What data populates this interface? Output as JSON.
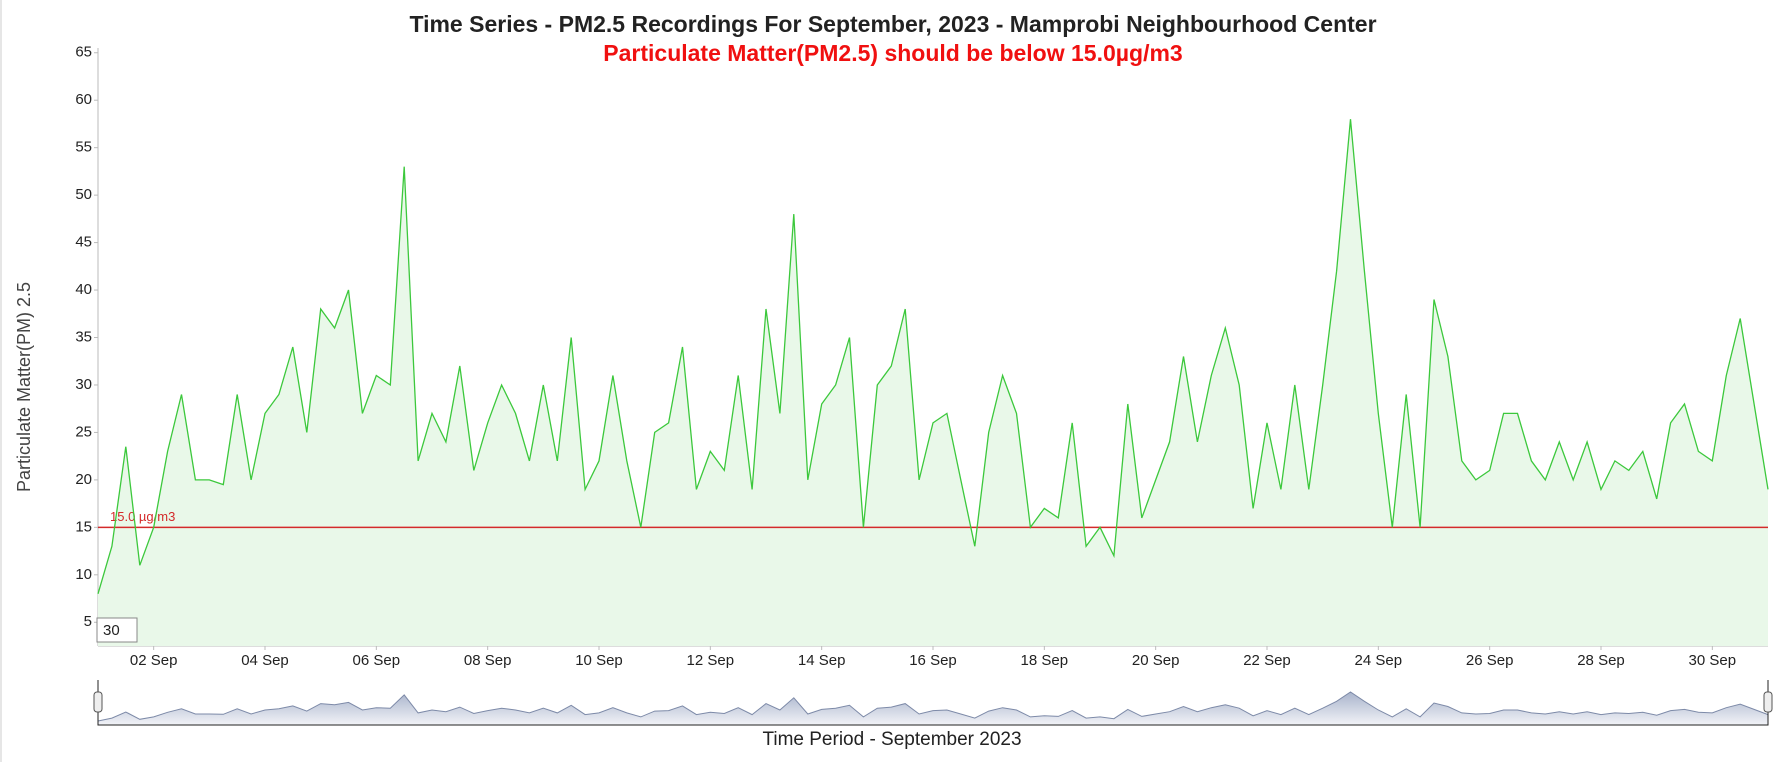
{
  "chart_data": {
    "type": "line",
    "title": "Time Series - PM2.5 Recordings For September, 2023 - Mamprobi Neighbourhood Center",
    "subtitle": "Particulate Matter(PM2.5) should be below 15.0µg/m3",
    "y_label": "Particulate Matter(PM) 2.5",
    "x_label": "Time Period - September 2023",
    "rolling_period": 30,
    "color": "#3cc83c",
    "fill_color": "#e9f8e9",
    "threshold": {
      "value": 15,
      "label": "15.0 µg/m3",
      "color": "#d42a2a"
    },
    "xlim": [
      1,
      31
    ],
    "ylim": [
      2.5,
      65.5
    ],
    "xticks": [
      {
        "value": 2,
        "label": "02 Sep"
      },
      {
        "value": 4,
        "label": "04 Sep"
      },
      {
        "value": 6,
        "label": "06 Sep"
      },
      {
        "value": 8,
        "label": "08 Sep"
      },
      {
        "value": 10,
        "label": "10 Sep"
      },
      {
        "value": 12,
        "label": "12 Sep"
      },
      {
        "value": 14,
        "label": "14 Sep"
      },
      {
        "value": 16,
        "label": "16 Sep"
      },
      {
        "value": 18,
        "label": "18 Sep"
      },
      {
        "value": 20,
        "label": "20 Sep"
      },
      {
        "value": 22,
        "label": "22 Sep"
      },
      {
        "value": 24,
        "label": "24 Sep"
      },
      {
        "value": 26,
        "label": "26 Sep"
      },
      {
        "value": 28,
        "label": "28 Sep"
      },
      {
        "value": 30,
        "label": "30 Sep"
      }
    ],
    "yticks": [
      5,
      10,
      15,
      20,
      25,
      30,
      35,
      40,
      45,
      50,
      55,
      60,
      65
    ],
    "x": [
      1,
      1.25,
      1.5,
      1.75,
      2,
      2.25,
      2.5,
      2.75,
      3,
      3.25,
      3.5,
      3.75,
      4,
      4.25,
      4.5,
      4.75,
      5,
      5.25,
      5.5,
      5.75,
      6,
      6.25,
      6.5,
      6.75,
      7,
      7.25,
      7.5,
      7.75,
      8,
      8.25,
      8.5,
      8.75,
      9,
      9.25,
      9.5,
      9.75,
      10,
      10.25,
      10.5,
      10.75,
      11,
      11.25,
      11.5,
      11.75,
      12,
      12.25,
      12.5,
      12.75,
      13,
      13.25,
      13.5,
      13.75,
      14,
      14.25,
      14.5,
      14.75,
      15,
      15.25,
      15.5,
      15.75,
      16,
      16.25,
      16.5,
      16.75,
      17,
      17.25,
      17.5,
      17.75,
      18,
      18.25,
      18.5,
      18.75,
      19,
      19.25,
      19.5,
      19.75,
      20,
      20.25,
      20.5,
      20.75,
      21,
      21.25,
      21.5,
      21.75,
      22,
      22.25,
      22.5,
      22.75,
      23,
      23.25,
      23.5,
      23.75,
      24,
      24.25,
      24.5,
      24.75,
      25,
      25.25,
      25.5,
      25.75,
      26,
      26.25,
      26.5,
      26.75,
      27,
      27.25,
      27.5,
      27.75,
      28,
      28.25,
      28.5,
      28.75,
      29,
      29.25,
      29.5,
      29.75,
      30,
      30.25,
      30.5,
      30.75,
      31
    ],
    "values": [
      8,
      13,
      23.5,
      11,
      15,
      23,
      29,
      20,
      20,
      19.5,
      29,
      20,
      27,
      29,
      34,
      25,
      38,
      36,
      40,
      27,
      31,
      30,
      53,
      22,
      27,
      24,
      32,
      21,
      26,
      30,
      27,
      22,
      30,
      22,
      35,
      19,
      22,
      31,
      22,
      15,
      25,
      26,
      34,
      19,
      23,
      21,
      31,
      19,
      38,
      27,
      48,
      20,
      28,
      30,
      35,
      15,
      30,
      32,
      38,
      20,
      26,
      27,
      20,
      13,
      25,
      31,
      27,
      15,
      17,
      16,
      26,
      13,
      15,
      12,
      28,
      16,
      20,
      24,
      33,
      24,
      31,
      36,
      30,
      17,
      26,
      19,
      30,
      19,
      30,
      42,
      58,
      42,
      27,
      15,
      29,
      15,
      39,
      33,
      22,
      20,
      21,
      27,
      27,
      22,
      20,
      24,
      20,
      24,
      19,
      22,
      21,
      23,
      18,
      26,
      28,
      23,
      22,
      31,
      37,
      28,
      19
    ]
  }
}
